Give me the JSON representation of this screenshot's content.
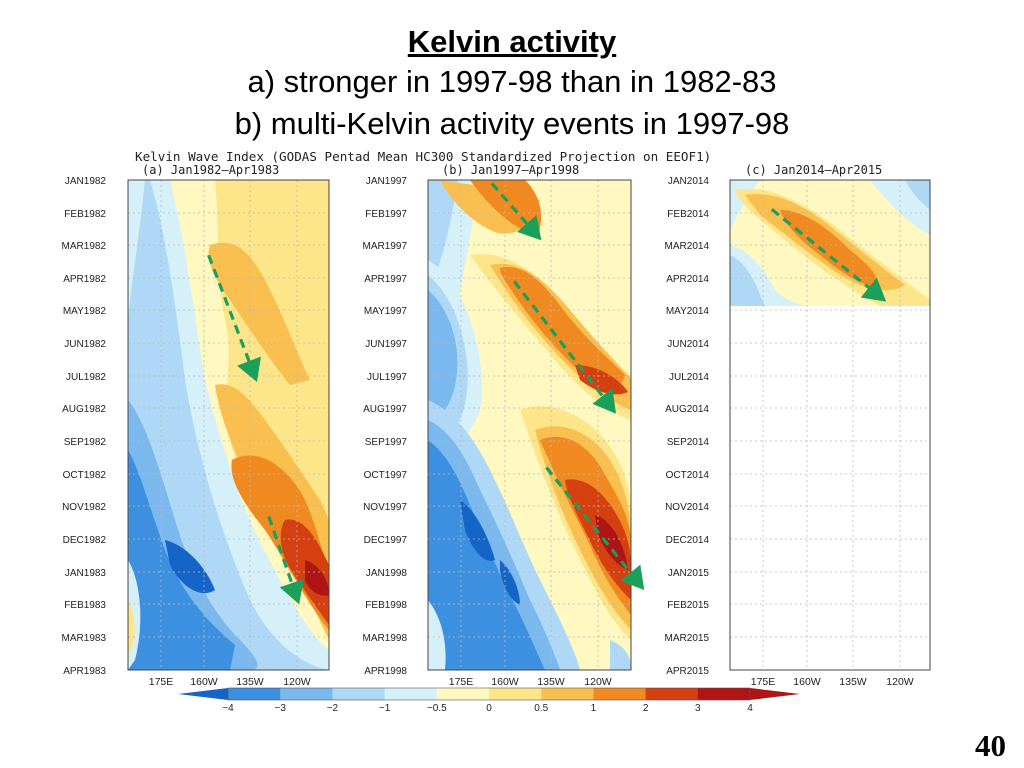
{
  "slide": {
    "title": "Kelvin activity",
    "line_a": "a) stronger in 1997-98 than in 1982-83",
    "line_b": "b) multi-Kelvin activity events in 1997-98",
    "page_number": "40"
  },
  "chart_data": {
    "type": "heatmap",
    "title": "Kelvin Wave Index (GODAS Pentad Mean HC300 Standardized Projection on EEOF1)",
    "x_ticks": [
      "175E",
      "160W",
      "135W",
      "120W"
    ],
    "colorbar": {
      "ticks": [
        "−4",
        "−3",
        "−2",
        "−1",
        "−0.5",
        "0",
        "0.5",
        "1",
        "2",
        "3",
        "4"
      ],
      "colors": [
        "#1565c8",
        "#3d8fe0",
        "#7ab8ee",
        "#aed8f5",
        "#d6f0fa",
        "#fff8c0",
        "#fde58a",
        "#f9c050",
        "#f08a20",
        "#d44010",
        "#b01515"
      ]
    },
    "arrow_color": "#1aa05a",
    "panels": [
      {
        "title": "(a) Jan1982—Apr1983",
        "y_ticks": [
          "JAN1982",
          "FEB1982",
          "MAR1982",
          "APR1982",
          "MAY1982",
          "JUN1982",
          "JUL1982",
          "AUG1982",
          "SEP1982",
          "OCT1982",
          "NOV1982",
          "DEC1982",
          "JAN1983",
          "FEB1983",
          "MAR1983",
          "APR1983"
        ],
        "data_extent_months": 15,
        "wave_arrows": [
          {
            "start": {
              "lon_tick": 1.1,
              "month": 2.3
            },
            "end": {
              "lon_tick": 2.1,
              "month": 6.0
            }
          },
          {
            "start": {
              "lon_tick": 2.4,
              "month": 10.3
            },
            "end": {
              "lon_tick": 3.0,
              "month": 12.8
            }
          }
        ]
      },
      {
        "title": "(b) Jan1997—Apr1998",
        "y_ticks": [
          "JAN1997",
          "FEB1997",
          "MAR1997",
          "APR1997",
          "MAY1997",
          "JUN1997",
          "JUL1997",
          "AUG1997",
          "SEP1997",
          "OCT1997",
          "NOV1997",
          "DEC1997",
          "JAN1998",
          "FEB1998",
          "MAR1998",
          "APR1998"
        ],
        "data_extent_months": 15,
        "wave_arrows": [
          {
            "start": {
              "lon_tick": 0.7,
              "month": 0.1
            },
            "end": {
              "lon_tick": 1.7,
              "month": 1.7
            }
          },
          {
            "start": {
              "lon_tick": 1.2,
              "month": 3.1
            },
            "end": {
              "lon_tick": 3.3,
              "month": 7.0
            }
          },
          {
            "start": {
              "lon_tick": 1.9,
              "month": 8.8
            },
            "end": {
              "lon_tick": 3.9,
              "month": 12.4
            }
          }
        ]
      },
      {
        "title": "(c) Jan2014—Apr2015",
        "y_ticks": [
          "JAN2014",
          "FEB2014",
          "MAR2014",
          "APR2014",
          "MAY2014",
          "JUN2014",
          "JUL2014",
          "AUG2014",
          "SEP2014",
          "OCT2014",
          "NOV2014",
          "DEC2014",
          "JAN2015",
          "FEB2015",
          "MAR2015",
          "APR2015"
        ],
        "data_extent_months": 3.8,
        "wave_arrows": [
          {
            "start": {
              "lon_tick": 0.2,
              "month": 0.9
            },
            "end": {
              "lon_tick": 2.6,
              "month": 3.6
            }
          }
        ]
      }
    ]
  }
}
